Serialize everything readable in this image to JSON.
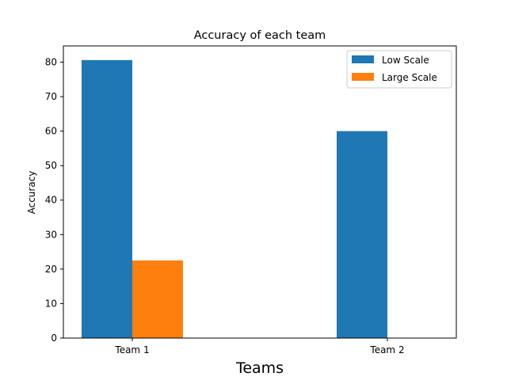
{
  "chart_data": {
    "type": "bar",
    "title": "Accuracy of each team",
    "xlabel": "Teams",
    "ylabel": "Accuracy",
    "categories": [
      "Team 1",
      "Team 2"
    ],
    "series": [
      {
        "name": "Low Scale",
        "values": [
          80.6,
          60.0
        ],
        "color": "#1f77b4"
      },
      {
        "name": "Large Scale",
        "values": [
          22.5,
          0
        ],
        "color": "#ff7f0e"
      }
    ],
    "ylim": [
      0,
      84.7
    ],
    "yticks": [
      0,
      10,
      20,
      30,
      40,
      50,
      60,
      70,
      80
    ],
    "grid": false,
    "legend_position": "top-right"
  }
}
